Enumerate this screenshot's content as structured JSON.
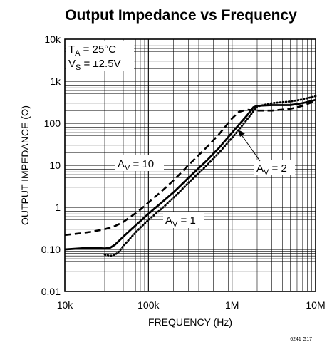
{
  "chart_data": {
    "type": "line",
    "title": "Output Impedance vs Frequency",
    "xlabel": "FREQUENCY (Hz)",
    "ylabel": "OUTPUT IMPEDANCE (Ω)",
    "xscale": "log",
    "yscale": "log",
    "xlim": [
      10000,
      10000000
    ],
    "ylim": [
      0.01,
      10000
    ],
    "grid": true,
    "x_ticks": [
      {
        "value": 10000,
        "label": "10k"
      },
      {
        "value": 100000,
        "label": "100k"
      },
      {
        "value": 1000000,
        "label": "1M"
      },
      {
        "value": 10000000,
        "label": "10M"
      }
    ],
    "y_ticks": [
      {
        "value": 0.01,
        "label": "0.01"
      },
      {
        "value": 0.1,
        "label": "0.10"
      },
      {
        "value": 1,
        "label": "1"
      },
      {
        "value": 10,
        "label": "10"
      },
      {
        "value": 100,
        "label": "100"
      },
      {
        "value": 1000,
        "label": "1k"
      },
      {
        "value": 10000,
        "label": "10k"
      }
    ],
    "conditions": {
      "ta": {
        "main": "T",
        "sub": "A",
        "rest": " = 25°C"
      },
      "vs": {
        "main": "V",
        "sub": "S",
        "rest": " = ±2.5V"
      }
    },
    "series": [
      {
        "id": "av10",
        "style": "dashed",
        "x": [
          10000,
          15000,
          20000,
          30000,
          40000,
          50000,
          60000,
          80000,
          100000,
          150000,
          200000,
          300000,
          500000,
          700000,
          1000000,
          1200000,
          1500000,
          2000000,
          3000000,
          5000000,
          7000000,
          10000000
        ],
        "y": [
          0.22,
          0.24,
          0.26,
          0.3,
          0.36,
          0.45,
          0.58,
          0.88,
          1.3,
          2.6,
          4.4,
          10,
          27,
          55,
          130,
          185,
          210,
          200,
          200,
          220,
          260,
          340
        ]
      },
      {
        "id": "av2",
        "style": "solid",
        "x": [
          10000,
          15000,
          20000,
          30000,
          35000,
          40000,
          50000,
          60000,
          70000,
          80000,
          100000,
          150000,
          200000,
          300000,
          500000,
          700000,
          1000000,
          1500000,
          1800000,
          2000000,
          3000000,
          5000000,
          7000000,
          10000000
        ],
        "y": [
          0.1,
          0.105,
          0.11,
          0.105,
          0.11,
          0.13,
          0.2,
          0.28,
          0.37,
          0.47,
          0.7,
          1.4,
          2.3,
          5,
          13,
          26,
          60,
          150,
          240,
          260,
          270,
          270,
          300,
          360
        ]
      },
      {
        "id": "av1",
        "style": "dotted",
        "x": [
          30000,
          35000,
          40000,
          45000,
          50000,
          60000,
          70000,
          80000,
          100000,
          150000,
          200000,
          300000,
          500000,
          700000,
          1000000,
          1500000,
          2000000,
          3000000,
          5000000,
          7000000,
          10000000
        ],
        "y": [
          0.075,
          0.07,
          0.075,
          0.09,
          0.12,
          0.18,
          0.25,
          0.33,
          0.5,
          1.0,
          1.7,
          3.8,
          10,
          20,
          45,
          120,
          250,
          300,
          330,
          370,
          440
        ]
      }
    ],
    "annotations": [
      {
        "id": "av10-label",
        "main": "A",
        "sub": "V",
        "rest": " = 10",
        "series": "av10"
      },
      {
        "id": "av2-label",
        "main": "A",
        "sub": "V",
        "rest": " = 2",
        "series": "av2"
      },
      {
        "id": "av1-label",
        "main": "A",
        "sub": "V",
        "rest": " = 1",
        "series": "av1"
      }
    ],
    "figure_id": "6241 G17"
  }
}
